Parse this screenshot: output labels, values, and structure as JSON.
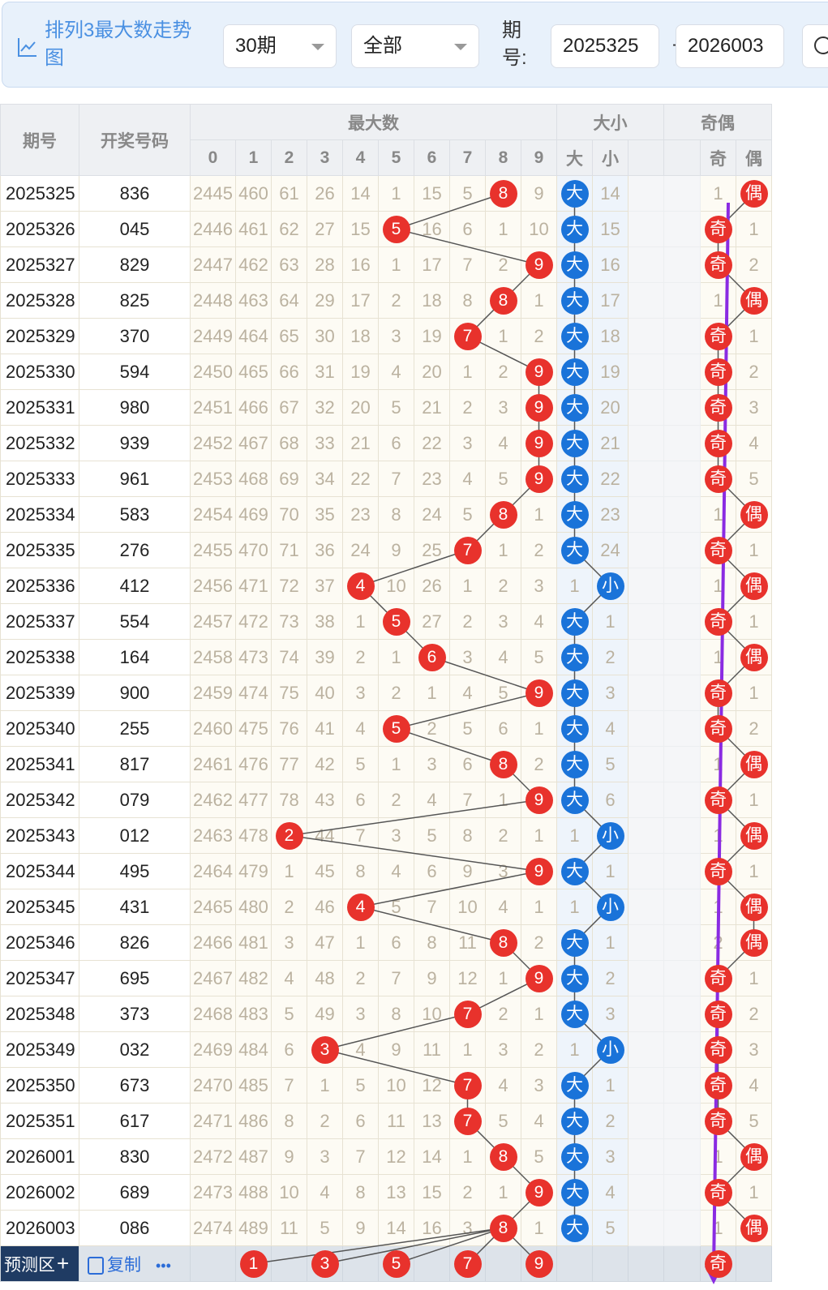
{
  "header": {
    "title": "排列3最大数走势图",
    "period_select": "30期",
    "filter_select": "全部",
    "issue_label": "期号:",
    "issue_from": "2025325",
    "issue_separator": "-",
    "issue_to": "2026003"
  },
  "table": {
    "col_issue": "期号",
    "col_numbers": "开奖号码",
    "group_max": "最大数",
    "group_size": "大小",
    "group_parity": "奇偶",
    "digit_headers": [
      "0",
      "1",
      "2",
      "3",
      "4",
      "5",
      "6",
      "7",
      "8",
      "9"
    ],
    "size_headers": [
      "大",
      "小"
    ],
    "parity_headers": [
      "奇",
      "偶"
    ],
    "rows": [
      {
        "issue": "2025325",
        "nums": "836",
        "miss": [
          "2445",
          "460",
          "61",
          "26",
          "14",
          "1",
          "15",
          "5",
          "8",
          "9"
        ],
        "max": 8,
        "size": [
          "大",
          "14"
        ],
        "size_hit": 0,
        "parity": [
          "1",
          "偶"
        ],
        "parity_hit": 1
      },
      {
        "issue": "2025326",
        "nums": "045",
        "miss": [
          "2446",
          "461",
          "62",
          "27",
          "15",
          "5",
          "16",
          "6",
          "1",
          "10"
        ],
        "max": 5,
        "size": [
          "大",
          "15"
        ],
        "size_hit": 0,
        "parity": [
          "奇",
          "1"
        ],
        "parity_hit": 0
      },
      {
        "issue": "2025327",
        "nums": "829",
        "miss": [
          "2447",
          "462",
          "63",
          "28",
          "16",
          "1",
          "17",
          "7",
          "2",
          "9"
        ],
        "max": 9,
        "size": [
          "大",
          "16"
        ],
        "size_hit": 0,
        "parity": [
          "奇",
          "2"
        ],
        "parity_hit": 0
      },
      {
        "issue": "2025328",
        "nums": "825",
        "miss": [
          "2448",
          "463",
          "64",
          "29",
          "17",
          "2",
          "18",
          "8",
          "8",
          "1"
        ],
        "max": 8,
        "size": [
          "大",
          "17"
        ],
        "size_hit": 0,
        "parity": [
          "1",
          "偶"
        ],
        "parity_hit": 1
      },
      {
        "issue": "2025329",
        "nums": "370",
        "miss": [
          "2449",
          "464",
          "65",
          "30",
          "18",
          "3",
          "19",
          "7",
          "1",
          "2"
        ],
        "max": 7,
        "size": [
          "大",
          "18"
        ],
        "size_hit": 0,
        "parity": [
          "奇",
          "1"
        ],
        "parity_hit": 0
      },
      {
        "issue": "2025330",
        "nums": "594",
        "miss": [
          "2450",
          "465",
          "66",
          "31",
          "19",
          "4",
          "20",
          "1",
          "2",
          "9"
        ],
        "max": 9,
        "size": [
          "大",
          "19"
        ],
        "size_hit": 0,
        "parity": [
          "奇",
          "2"
        ],
        "parity_hit": 0
      },
      {
        "issue": "2025331",
        "nums": "980",
        "miss": [
          "2451",
          "466",
          "67",
          "32",
          "20",
          "5",
          "21",
          "2",
          "3",
          "9"
        ],
        "max": 9,
        "size": [
          "大",
          "20"
        ],
        "size_hit": 0,
        "parity": [
          "奇",
          "3"
        ],
        "parity_hit": 0
      },
      {
        "issue": "2025332",
        "nums": "939",
        "miss": [
          "2452",
          "467",
          "68",
          "33",
          "21",
          "6",
          "22",
          "3",
          "4",
          "9"
        ],
        "max": 9,
        "size": [
          "大",
          "21"
        ],
        "size_hit": 0,
        "parity": [
          "奇",
          "4"
        ],
        "parity_hit": 0
      },
      {
        "issue": "2025333",
        "nums": "961",
        "miss": [
          "2453",
          "468",
          "69",
          "34",
          "22",
          "7",
          "23",
          "4",
          "5",
          "9"
        ],
        "max": 9,
        "size": [
          "大",
          "22"
        ],
        "size_hit": 0,
        "parity": [
          "奇",
          "5"
        ],
        "parity_hit": 0
      },
      {
        "issue": "2025334",
        "nums": "583",
        "miss": [
          "2454",
          "469",
          "70",
          "35",
          "23",
          "8",
          "24",
          "5",
          "8",
          "1"
        ],
        "max": 8,
        "size": [
          "大",
          "23"
        ],
        "size_hit": 0,
        "parity": [
          "1",
          "偶"
        ],
        "parity_hit": 1
      },
      {
        "issue": "2025335",
        "nums": "276",
        "miss": [
          "2455",
          "470",
          "71",
          "36",
          "24",
          "9",
          "25",
          "7",
          "1",
          "2"
        ],
        "max": 7,
        "size": [
          "大",
          "24"
        ],
        "size_hit": 0,
        "parity": [
          "奇",
          "1"
        ],
        "parity_hit": 0
      },
      {
        "issue": "2025336",
        "nums": "412",
        "miss": [
          "2456",
          "471",
          "72",
          "37",
          "4",
          "10",
          "26",
          "1",
          "2",
          "3"
        ],
        "max": 4,
        "size": [
          "1",
          "小"
        ],
        "size_hit": 1,
        "parity": [
          "1",
          "偶"
        ],
        "parity_hit": 1
      },
      {
        "issue": "2025337",
        "nums": "554",
        "miss": [
          "2457",
          "472",
          "73",
          "38",
          "1",
          "5",
          "27",
          "2",
          "3",
          "4"
        ],
        "max": 5,
        "size": [
          "大",
          "1"
        ],
        "size_hit": 0,
        "parity": [
          "奇",
          "1"
        ],
        "parity_hit": 0
      },
      {
        "issue": "2025338",
        "nums": "164",
        "miss": [
          "2458",
          "473",
          "74",
          "39",
          "2",
          "1",
          "6",
          "3",
          "4",
          "5"
        ],
        "max": 6,
        "size": [
          "大",
          "2"
        ],
        "size_hit": 0,
        "parity": [
          "1",
          "偶"
        ],
        "parity_hit": 1
      },
      {
        "issue": "2025339",
        "nums": "900",
        "miss": [
          "2459",
          "474",
          "75",
          "40",
          "3",
          "2",
          "1",
          "4",
          "5",
          "9"
        ],
        "max": 9,
        "size": [
          "大",
          "3"
        ],
        "size_hit": 0,
        "parity": [
          "奇",
          "1"
        ],
        "parity_hit": 0
      },
      {
        "issue": "2025340",
        "nums": "255",
        "miss": [
          "2460",
          "475",
          "76",
          "41",
          "4",
          "5",
          "2",
          "5",
          "6",
          "1"
        ],
        "max": 5,
        "size": [
          "大",
          "4"
        ],
        "size_hit": 0,
        "parity": [
          "奇",
          "2"
        ],
        "parity_hit": 0
      },
      {
        "issue": "2025341",
        "nums": "817",
        "miss": [
          "2461",
          "476",
          "77",
          "42",
          "5",
          "1",
          "3",
          "6",
          "8",
          "2"
        ],
        "max": 8,
        "size": [
          "大",
          "5"
        ],
        "size_hit": 0,
        "parity": [
          "1",
          "偶"
        ],
        "parity_hit": 1
      },
      {
        "issue": "2025342",
        "nums": "079",
        "miss": [
          "2462",
          "477",
          "78",
          "43",
          "6",
          "2",
          "4",
          "7",
          "1",
          "9"
        ],
        "max": 9,
        "size": [
          "大",
          "6"
        ],
        "size_hit": 0,
        "parity": [
          "奇",
          "1"
        ],
        "parity_hit": 0
      },
      {
        "issue": "2025343",
        "nums": "012",
        "miss": [
          "2463",
          "478",
          "2",
          "44",
          "7",
          "3",
          "5",
          "8",
          "2",
          "1"
        ],
        "max": 2,
        "size": [
          "1",
          "小"
        ],
        "size_hit": 1,
        "parity": [
          "1",
          "偶"
        ],
        "parity_hit": 1
      },
      {
        "issue": "2025344",
        "nums": "495",
        "miss": [
          "2464",
          "479",
          "1",
          "45",
          "8",
          "4",
          "6",
          "9",
          "3",
          "9"
        ],
        "max": 9,
        "size": [
          "大",
          "1"
        ],
        "size_hit": 0,
        "parity": [
          "奇",
          "1"
        ],
        "parity_hit": 0
      },
      {
        "issue": "2025345",
        "nums": "431",
        "miss": [
          "2465",
          "480",
          "2",
          "46",
          "4",
          "5",
          "7",
          "10",
          "4",
          "1"
        ],
        "max": 4,
        "size": [
          "1",
          "小"
        ],
        "size_hit": 1,
        "parity": [
          "1",
          "偶"
        ],
        "parity_hit": 1
      },
      {
        "issue": "2025346",
        "nums": "826",
        "miss": [
          "2466",
          "481",
          "3",
          "47",
          "1",
          "6",
          "8",
          "11",
          "8",
          "2"
        ],
        "max": 8,
        "size": [
          "大",
          "1"
        ],
        "size_hit": 0,
        "parity": [
          "2",
          "偶"
        ],
        "parity_hit": 1
      },
      {
        "issue": "2025347",
        "nums": "695",
        "miss": [
          "2467",
          "482",
          "4",
          "48",
          "2",
          "7",
          "9",
          "12",
          "1",
          "9"
        ],
        "max": 9,
        "size": [
          "大",
          "2"
        ],
        "size_hit": 0,
        "parity": [
          "奇",
          "1"
        ],
        "parity_hit": 0
      },
      {
        "issue": "2025348",
        "nums": "373",
        "miss": [
          "2468",
          "483",
          "5",
          "49",
          "3",
          "8",
          "10",
          "7",
          "2",
          "1"
        ],
        "max": 7,
        "size": [
          "大",
          "3"
        ],
        "size_hit": 0,
        "parity": [
          "奇",
          "2"
        ],
        "parity_hit": 0
      },
      {
        "issue": "2025349",
        "nums": "032",
        "miss": [
          "2469",
          "484",
          "6",
          "3",
          "4",
          "9",
          "11",
          "1",
          "3",
          "2"
        ],
        "max": 3,
        "size": [
          "1",
          "小"
        ],
        "size_hit": 1,
        "parity": [
          "奇",
          "3"
        ],
        "parity_hit": 0
      },
      {
        "issue": "2025350",
        "nums": "673",
        "miss": [
          "2470",
          "485",
          "7",
          "1",
          "5",
          "10",
          "12",
          "7",
          "4",
          "3"
        ],
        "max": 7,
        "size": [
          "大",
          "1"
        ],
        "size_hit": 0,
        "parity": [
          "奇",
          "4"
        ],
        "parity_hit": 0
      },
      {
        "issue": "2025351",
        "nums": "617",
        "miss": [
          "2471",
          "486",
          "8",
          "2",
          "6",
          "11",
          "13",
          "7",
          "5",
          "4"
        ],
        "max": 7,
        "size": [
          "大",
          "2"
        ],
        "size_hit": 0,
        "parity": [
          "奇",
          "5"
        ],
        "parity_hit": 0
      },
      {
        "issue": "2026001",
        "nums": "830",
        "miss": [
          "2472",
          "487",
          "9",
          "3",
          "7",
          "12",
          "14",
          "1",
          "8",
          "5"
        ],
        "max": 8,
        "size": [
          "大",
          "3"
        ],
        "size_hit": 0,
        "parity": [
          "1",
          "偶"
        ],
        "parity_hit": 1
      },
      {
        "issue": "2026002",
        "nums": "689",
        "miss": [
          "2473",
          "488",
          "10",
          "4",
          "8",
          "13",
          "15",
          "2",
          "1",
          "9"
        ],
        "max": 9,
        "size": [
          "大",
          "4"
        ],
        "size_hit": 0,
        "parity": [
          "奇",
          "1"
        ],
        "parity_hit": 0
      },
      {
        "issue": "2026003",
        "nums": "086",
        "miss": [
          "2474",
          "489",
          "11",
          "5",
          "9",
          "14",
          "16",
          "3",
          "8",
          "1"
        ],
        "max": 8,
        "size": [
          "大",
          "5"
        ],
        "size_hit": 0,
        "parity": [
          "1",
          "偶"
        ],
        "parity_hit": 1
      }
    ]
  },
  "prediction": {
    "label": "预测区",
    "plus": "+",
    "copy_label": "复制",
    "more": "•••",
    "balls": [
      "1",
      "3",
      "5",
      "7",
      "9"
    ],
    "ball_digits": [
      1,
      3,
      5,
      7,
      9
    ],
    "parity_ball": "奇"
  },
  "colors": {
    "red_ball": "#e8322c",
    "blue_ball": "#1a73d9",
    "trend_arrow": "#8a2be2",
    "accent": "#4a90e2"
  }
}
